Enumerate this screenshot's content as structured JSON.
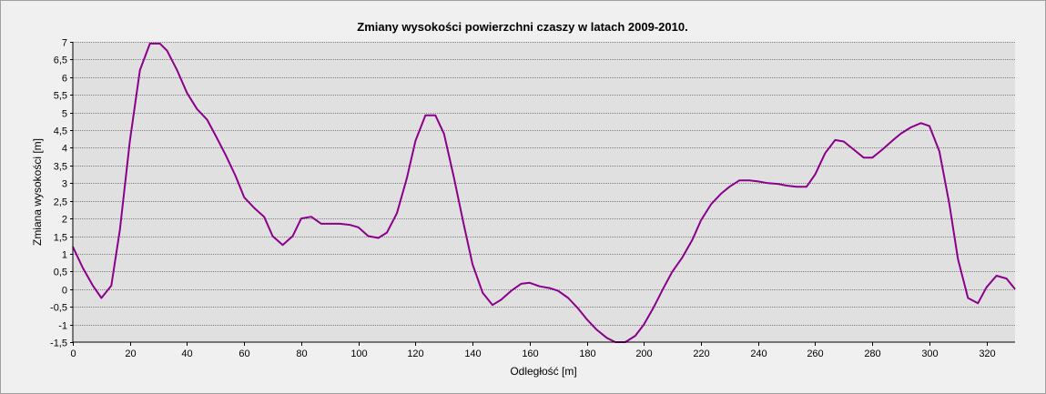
{
  "chart_data": {
    "type": "line",
    "title": "Zmiany wysokości powierzchni czaszy w latach 2009-2010.",
    "xlabel": "Odległość [m]",
    "ylabel": "Zmiana wysokości [m]",
    "xlim": [
      0,
      330
    ],
    "ylim": [
      -1.5,
      7
    ],
    "x_ticks": [
      0,
      20,
      40,
      60,
      80,
      100,
      120,
      140,
      160,
      180,
      200,
      220,
      240,
      260,
      280,
      300,
      320
    ],
    "y_ticks": [
      -1.5,
      -1,
      -0.5,
      0,
      0.5,
      1,
      1.5,
      2,
      2.5,
      3,
      3.5,
      4,
      4.5,
      5,
      5.5,
      6,
      6.5,
      7
    ],
    "y_tick_labels": [
      "-1,5",
      "-1",
      "-0,5",
      "0",
      "0,5",
      "1",
      "1,5",
      "2",
      "2,5",
      "3",
      "3,5",
      "4",
      "4,5",
      "5",
      "5,5",
      "6",
      "6,5",
      "7"
    ],
    "grid": true,
    "line_color": "#8b008b",
    "plot_background": "#e0e0e0",
    "series": [
      {
        "x": [
          0,
          3.5,
          7,
          10,
          13.5,
          16.5,
          20,
          23.5,
          27,
          30.5,
          33,
          36.5,
          40,
          43.5,
          47,
          50,
          53.5,
          57,
          60,
          63.5,
          67,
          70,
          73.5,
          77,
          80,
          83.5,
          87,
          90,
          93.5,
          97,
          100,
          103.5,
          107,
          110,
          113.5,
          117,
          120,
          123.5,
          127,
          130,
          133.5,
          137,
          140,
          143.5,
          147,
          150,
          153.5,
          157,
          160,
          163.5,
          167,
          170,
          173.5,
          177,
          180,
          183.5,
          187,
          190,
          193.5,
          197,
          200,
          203.5,
          207,
          210,
          213.5,
          217,
          220,
          223.5,
          227,
          230,
          233.5,
          237,
          240,
          243.5,
          247,
          250,
          253.5,
          257,
          260,
          263.5,
          267,
          270,
          273.5,
          277,
          280,
          283.5,
          287,
          290,
          293.5,
          297,
          300,
          303.5,
          307,
          310,
          313.5,
          317,
          320,
          323.5,
          327,
          330
        ],
        "y": [
          1.2,
          0.6,
          0.1,
          -0.25,
          0.1,
          1.7,
          4.2,
          6.2,
          6.95,
          6.95,
          6.75,
          6.2,
          5.55,
          5.1,
          4.8,
          4.35,
          3.8,
          3.2,
          2.6,
          2.3,
          2.05,
          1.5,
          1.25,
          1.5,
          2.0,
          2.05,
          1.85,
          1.85,
          1.85,
          1.82,
          1.75,
          1.5,
          1.45,
          1.6,
          2.15,
          3.15,
          4.2,
          4.92,
          4.92,
          4.4,
          3.15,
          1.8,
          0.7,
          -0.1,
          -0.45,
          -0.3,
          -0.05,
          0.15,
          0.18,
          0.08,
          0.03,
          -0.05,
          -0.25,
          -0.55,
          -0.85,
          -1.15,
          -1.38,
          -1.5,
          -1.5,
          -1.32,
          -1.0,
          -0.5,
          0.05,
          0.5,
          0.9,
          1.4,
          1.95,
          2.4,
          2.7,
          2.9,
          3.08,
          3.08,
          3.05,
          3.0,
          2.98,
          2.93,
          2.9,
          2.9,
          3.25,
          3.85,
          4.22,
          4.18,
          3.95,
          3.72,
          3.72,
          3.95,
          4.2,
          4.4,
          4.58,
          4.7,
          4.62,
          3.9,
          2.4,
          0.85,
          -0.25,
          -0.4,
          0.05,
          0.38,
          0.3,
          0.0
        ]
      }
    ]
  }
}
